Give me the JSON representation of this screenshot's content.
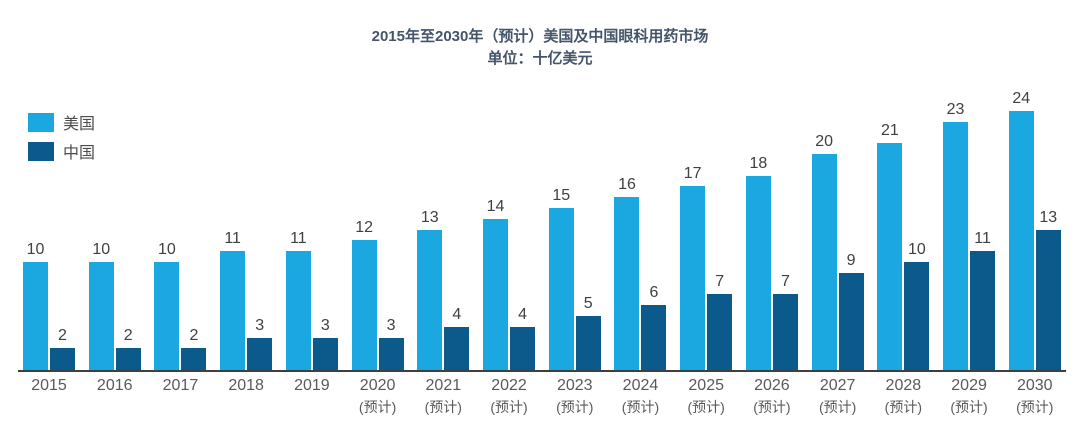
{
  "chart_data": {
    "type": "bar",
    "title": "2015年至2030年（预计）美国及中国眼科用药市场",
    "subtitle": "单位：十亿美元",
    "categories": [
      {
        "label": "2015",
        "note": ""
      },
      {
        "label": "2016",
        "note": ""
      },
      {
        "label": "2017",
        "note": ""
      },
      {
        "label": "2018",
        "note": ""
      },
      {
        "label": "2019",
        "note": ""
      },
      {
        "label": "2020",
        "note": "(预计)"
      },
      {
        "label": "2021",
        "note": "(预计)"
      },
      {
        "label": "2022",
        "note": "(预计)"
      },
      {
        "label": "2023",
        "note": "(预计)"
      },
      {
        "label": "2024",
        "note": "(预计)"
      },
      {
        "label": "2025",
        "note": "(预计)"
      },
      {
        "label": "2026",
        "note": "(预计)"
      },
      {
        "label": "2027",
        "note": "(预计)"
      },
      {
        "label": "2028",
        "note": "(预计)"
      },
      {
        "label": "2029",
        "note": "(预计)"
      },
      {
        "label": "2030",
        "note": "(预计)"
      }
    ],
    "series": [
      {
        "name": "美国",
        "color": "#1BA7E0",
        "values": [
          10,
          10,
          10,
          11,
          11,
          12,
          13,
          14,
          15,
          16,
          17,
          18,
          20,
          21,
          23,
          24
        ]
      },
      {
        "name": "中国",
        "color": "#0C5A8C",
        "values": [
          2,
          2,
          2,
          3,
          3,
          3,
          4,
          4,
          5,
          6,
          7,
          7,
          9,
          10,
          11,
          13
        ]
      }
    ],
    "ylim": [
      0,
      25
    ],
    "grid": false,
    "legend_position": "top-left",
    "value_labels": "above-bars"
  },
  "colors": {
    "us_bar": "#1BA7E0",
    "china_bar": "#0C5A8C",
    "title_text": "#44546A",
    "value_label_text": "#404040",
    "axis_label_text": "#595959",
    "axis_line": "#3f3f3f"
  }
}
